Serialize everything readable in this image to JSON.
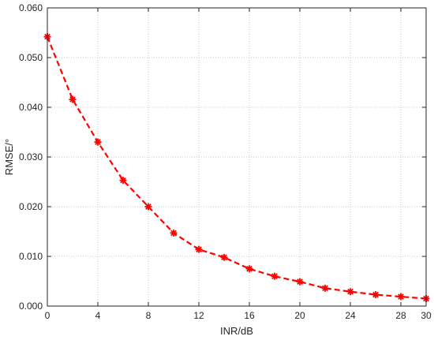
{
  "chart_data": {
    "type": "line",
    "xlabel": "INR/dB",
    "ylabel": "RMSE/°",
    "xlim": [
      0,
      30
    ],
    "ylim": [
      0,
      0.06
    ],
    "x_ticks": [
      0,
      4,
      8,
      12,
      16,
      20,
      24,
      28,
      30
    ],
    "x_tick_labels": [
      "0",
      "4",
      "8",
      "12",
      "16",
      "20",
      "24",
      "28",
      "30"
    ],
    "y_ticks": [
      0,
      0.01,
      0.02,
      0.03,
      0.04,
      0.05,
      0.06
    ],
    "y_tick_labels": [
      "0.000",
      "0.010",
      "0.020",
      "0.030",
      "0.040",
      "0.050",
      "0.060"
    ],
    "grid": true,
    "series": [
      {
        "color": "#ff0000",
        "line_style": "dashed",
        "marker": "asterisk",
        "x": [
          0,
          2,
          4,
          6,
          8,
          10,
          12,
          14,
          16,
          18,
          20,
          22,
          24,
          26,
          28,
          30
        ],
        "y": [
          0.0542,
          0.0416,
          0.033,
          0.0253,
          0.02,
          0.0147,
          0.0114,
          0.0098,
          0.0075,
          0.006,
          0.0049,
          0.0036,
          0.0029,
          0.0023,
          0.0019,
          0.0015
        ]
      }
    ]
  }
}
